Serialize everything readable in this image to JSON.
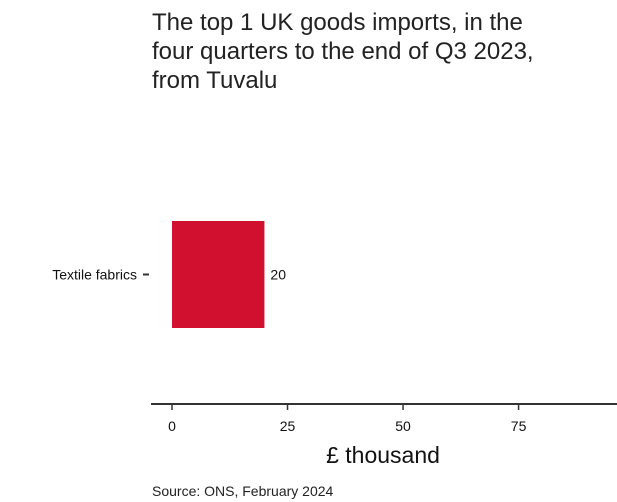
{
  "chart_data": {
    "type": "bar",
    "orientation": "horizontal",
    "title": "The top 1 UK goods imports, in the four quarters to the end of Q3 2023, from Tuvalu",
    "categories": [
      "Textile fabrics"
    ],
    "values": [
      20
    ],
    "data_labels": [
      "20"
    ],
    "xlabel": "£ thousand",
    "ylabel": "",
    "xlim": [
      0,
      95
    ],
    "xticks": [
      0,
      25,
      50,
      75
    ],
    "xtick_labels": [
      "0",
      "25",
      "50",
      "75"
    ],
    "bar_color": "#d0102e",
    "grid": false,
    "source": "Source: ONS, February 2024"
  }
}
